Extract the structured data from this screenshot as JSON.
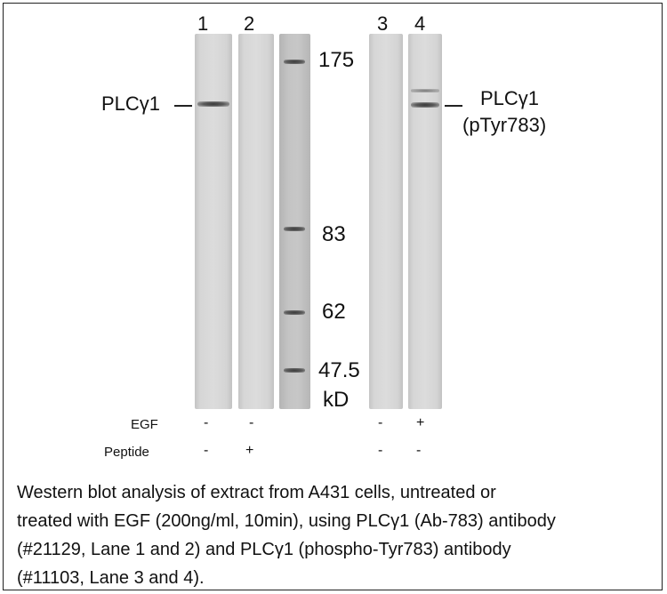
{
  "lanes": [
    {
      "number": "1",
      "egf": "-",
      "peptide": "-"
    },
    {
      "number": "2",
      "egf": "-",
      "peptide": "+"
    },
    {
      "number": "3",
      "egf": "-",
      "peptide": "-"
    },
    {
      "number": "4",
      "egf": "+",
      "peptide": "-"
    }
  ],
  "markers": [
    "175",
    "83",
    "62",
    "47.5"
  ],
  "marker_unit": "kD",
  "band_labels": {
    "left": "PLCγ1",
    "right_line1": "PLCγ1",
    "right_line2": "(pTyr783)"
  },
  "conditions": {
    "egf": "EGF",
    "peptide": "Peptide"
  },
  "caption": [
    "Western blot analysis of extract from A431 cells, untreated or",
    "treated with EGF (200ng/ml, 10min), using PLCγ1 (Ab-783) antibody",
    "(#21129, Lane 1 and 2) and PLCγ1 (phospho-Tyr783) antibody",
    "(#11103, Lane 3 and 4)."
  ]
}
